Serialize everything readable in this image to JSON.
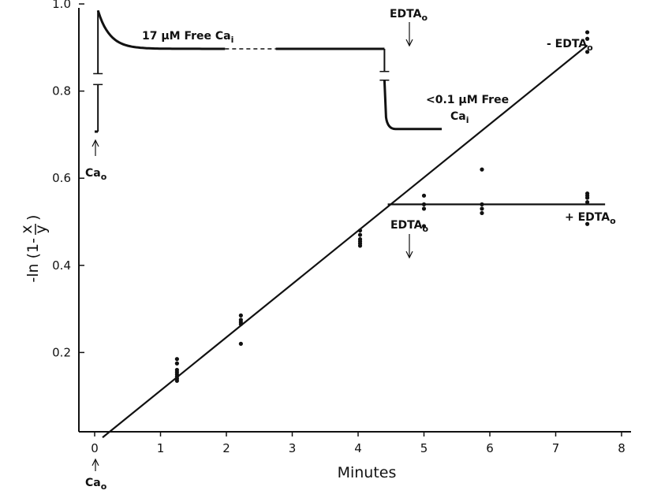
{
  "chart_data": {
    "type": "scatter",
    "xlabel": "Minutes",
    "ylabel": "-ln (1- x/y)",
    "ylabel_parts": {
      "prefix": "-ln (1-",
      "num": "x",
      "den": "y",
      "suffix": ")"
    },
    "xlim": [
      0,
      8
    ],
    "ylim": [
      0,
      1.0
    ],
    "x_ticks": [
      0,
      1,
      2,
      3,
      4,
      5,
      6,
      7,
      8
    ],
    "y_ticks": [
      0.2,
      0.4,
      0.6,
      0.8,
      1.0
    ],
    "y_tick_labels": [
      "0.2",
      "0.4",
      "0.6",
      "0.8",
      "1.0"
    ],
    "grid": false,
    "series": [
      {
        "points": [
          [
            1.25,
            0.185
          ],
          [
            1.25,
            0.175
          ],
          [
            1.25,
            0.16
          ],
          [
            1.25,
            0.155
          ],
          [
            1.25,
            0.15
          ],
          [
            1.25,
            0.145
          ],
          [
            1.25,
            0.14
          ],
          [
            1.25,
            0.135
          ],
          [
            2.22,
            0.285
          ],
          [
            2.22,
            0.275
          ],
          [
            2.22,
            0.27
          ],
          [
            2.22,
            0.265
          ],
          [
            2.22,
            0.22
          ],
          [
            4.03,
            0.48
          ],
          [
            4.03,
            0.47
          ],
          [
            4.03,
            0.46
          ],
          [
            4.03,
            0.455
          ],
          [
            4.03,
            0.45
          ],
          [
            4.03,
            0.445
          ],
          [
            7.48,
            0.935
          ],
          [
            7.48,
            0.92
          ],
          [
            7.48,
            0.89
          ]
        ]
      },
      {
        "points": [
          [
            5.0,
            0.56
          ],
          [
            5.0,
            0.54
          ],
          [
            5.0,
            0.53
          ],
          [
            5.0,
            0.49
          ],
          [
            5.88,
            0.62
          ],
          [
            5.88,
            0.54
          ],
          [
            5.88,
            0.53
          ],
          [
            5.88,
            0.52
          ],
          [
            7.48,
            0.565
          ],
          [
            7.48,
            0.56
          ],
          [
            7.48,
            0.555
          ],
          [
            7.48,
            0.545
          ],
          [
            7.48,
            0.495
          ]
        ]
      }
    ],
    "fit_lines": [
      {
        "x": [
          0.12,
          7.48
        ],
        "y": [
          0.005,
          0.905
        ]
      },
      {
        "x": [
          4.45,
          7.75
        ],
        "y": [
          0.54,
          0.54
        ]
      }
    ],
    "inset_trace": {
      "before_level": 0.707,
      "x_step": 0.05,
      "peak": 0.985,
      "plateau_level": 0.897,
      "solid_segments": [
        [
          0.05,
          1.98
        ],
        [
          2.75,
          4.4
        ]
      ],
      "dashed_segment": [
        1.98,
        2.75
      ],
      "drop_x": 4.4,
      "after_level": 0.713,
      "after_end": 5.27,
      "break_marks": [
        {
          "x": 0.05,
          "y_top": 0.84,
          "y_bottom": 0.815
        },
        {
          "x": 4.4,
          "y_top": 0.845,
          "y_bottom": 0.825
        }
      ]
    },
    "annotations": {
      "trace_label_1": {
        "text": "17 μM Free Ca",
        "sub": "i"
      },
      "trace_label_2a": {
        "text": "<0.1 μM Free"
      },
      "trace_label_2b": {
        "text": "Ca",
        "sub": "i"
      },
      "edta_top": {
        "text": "EDTA",
        "sub": "o"
      },
      "edta_mid": {
        "text": "EDTA",
        "sub": "o"
      },
      "minus_edta": {
        "text": "- EDTA",
        "sub": "o"
      },
      "plus_edta": {
        "text": "+ EDTA",
        "sub": "o"
      },
      "ca_trace": {
        "text": "Ca",
        "sub": "o"
      },
      "ca_axis": {
        "text": "Ca",
        "sub": "o"
      }
    }
  }
}
